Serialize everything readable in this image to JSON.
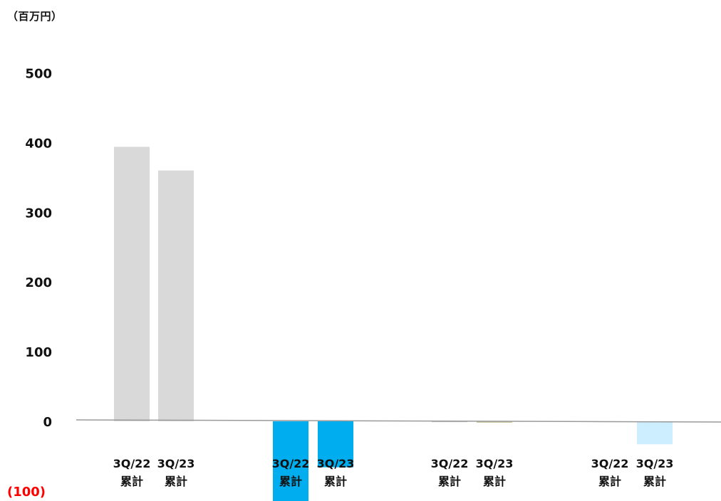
{
  "chart_data": {
    "type": "bar",
    "unit": "（百万円）",
    "ylim": [
      -100,
      500
    ],
    "yticks": [
      {
        "value": 500,
        "label": "500"
      },
      {
        "value": 400,
        "label": "400"
      },
      {
        "value": 300,
        "label": "300"
      },
      {
        "value": 200,
        "label": "200"
      },
      {
        "value": 100,
        "label": "100"
      },
      {
        "value": 0,
        "label": "0"
      },
      {
        "value": -100,
        "label": "(100)"
      }
    ],
    "negative_tick_color": "#ff0000",
    "grid": false,
    "bars": [
      {
        "group": 1,
        "label_line1": "3Q/22",
        "label_line2": "累計",
        "value": 394,
        "color": "#d9d9d9"
      },
      {
        "group": 1,
        "label_line1": "3Q/23",
        "label_line2": "累計",
        "value": 360,
        "color": "#d9d9d9"
      },
      {
        "group": 2,
        "label_line1": "3Q/22",
        "label_line2": "累計",
        "value": -116,
        "color": "#00aeef"
      },
      {
        "group": 2,
        "label_line1": "3Q/23",
        "label_line2": "累計",
        "value": -66,
        "color": "#00aeef"
      },
      {
        "group": 3,
        "label_line1": "3Q/22",
        "label_line2": "累計",
        "value": -1,
        "color": "#c8c8c8"
      },
      {
        "group": 3,
        "label_line1": "3Q/23",
        "label_line2": "累計",
        "value": -2,
        "color": "#c8c8a0"
      },
      {
        "group": 4,
        "label_line1": "3Q/22",
        "label_line2": "累計",
        "value": 0,
        "color": "#cceeff"
      },
      {
        "group": 4,
        "label_line1": "3Q/23",
        "label_line2": "累計",
        "value": -33,
        "color": "#cceeff"
      }
    ]
  }
}
